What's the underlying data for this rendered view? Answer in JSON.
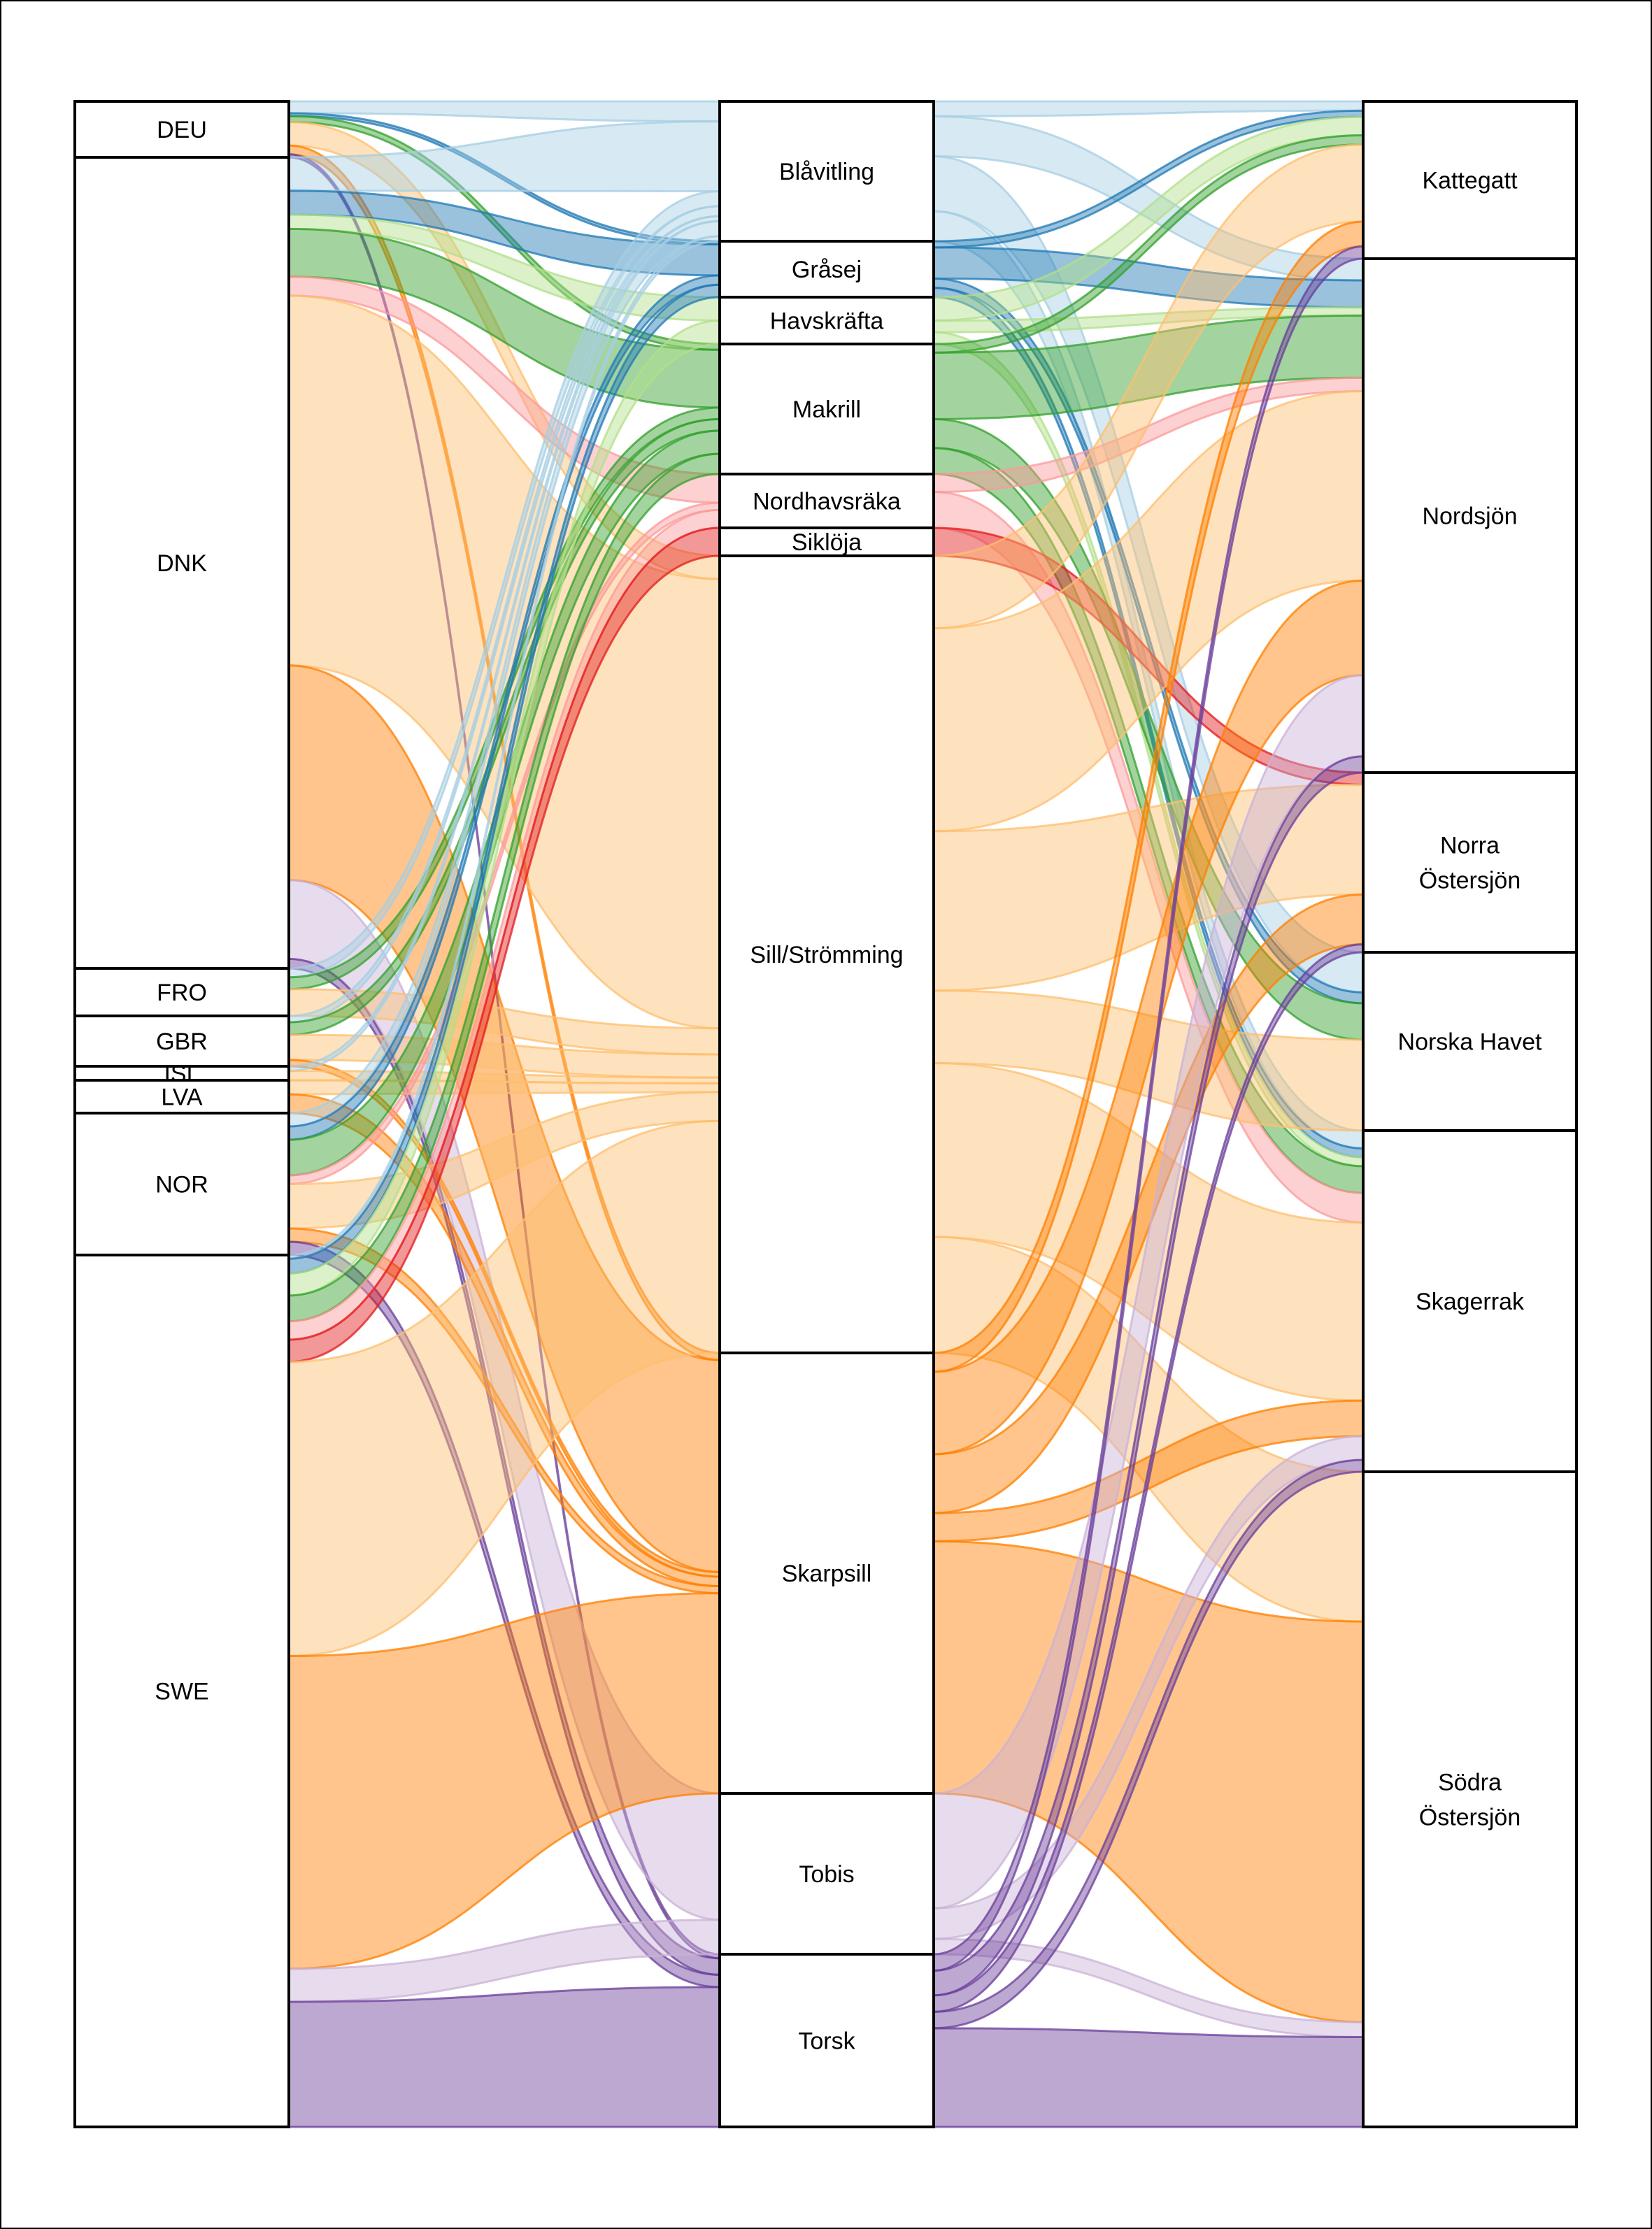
{
  "countries": [
    {
      "id": "DEU",
      "label": "DEU"
    },
    {
      "id": "DNK",
      "label": "DNK"
    },
    {
      "id": "FRO",
      "label": "FRO"
    },
    {
      "id": "GBR",
      "label": "GBR"
    },
    {
      "id": "ISL",
      "label": "ISL"
    },
    {
      "id": "LVA",
      "label": "LVA"
    },
    {
      "id": "NOR",
      "label": "NOR"
    },
    {
      "id": "SWE",
      "label": "SWE"
    }
  ],
  "species": [
    {
      "id": "blavitling",
      "label": "Blåvitling",
      "color": "#a6cee3"
    },
    {
      "id": "grasej",
      "label": "Gråsej",
      "color": "#1f78b4"
    },
    {
      "id": "havskrafta",
      "label": "Havskräfta",
      "color": "#b2df8a"
    },
    {
      "id": "makrill",
      "label": "Makrill",
      "color": "#33a02c"
    },
    {
      "id": "nordhavsraka",
      "label": "Nordhavsräka",
      "color": "#fb9a99"
    },
    {
      "id": "siklója",
      "label": "Siklöja",
      "color": "#e31a1c"
    },
    {
      "id": "sill",
      "label": "Sill/Strömming",
      "color": "#fdbf6f"
    },
    {
      "id": "skarpsill",
      "label": "Skarpsill",
      "color": "#ff7f00"
    },
    {
      "id": "tobis",
      "label": "Tobis",
      "color": "#cab2d6"
    },
    {
      "id": "torsk",
      "label": "Torsk",
      "color": "#6a3d9a"
    }
  ],
  "areas": [
    {
      "id": "kattegatt",
      "label": "Kattegatt"
    },
    {
      "id": "nordsjon",
      "label": "Nordsjön"
    },
    {
      "id": "norra",
      "label": "Norra\nÖstersjön"
    },
    {
      "id": "norska",
      "label": "Norska Havet"
    },
    {
      "id": "skagerrak",
      "label": "Skagerrak"
    },
    {
      "id": "sodra",
      "label": "Södra\nÖstersjön"
    }
  ],
  "flows_country_species": [
    [
      "DEU",
      "blavitling",
      4
    ],
    [
      "DEU",
      "grasej",
      1
    ],
    [
      "DEU",
      "makrill",
      2
    ],
    [
      "DEU",
      "sill",
      8
    ],
    [
      "DEU",
      "skarpsill",
      3
    ],
    [
      "DEU",
      "torsk",
      1
    ],
    [
      "DNK",
      "blavitling",
      14
    ],
    [
      "DNK",
      "grasej",
      10
    ],
    [
      "DNK",
      "havskrafta",
      6
    ],
    [
      "DNK",
      "makrill",
      20
    ],
    [
      "DNK",
      "nordhavsraka",
      8
    ],
    [
      "DNK",
      "sill",
      155
    ],
    [
      "DNK",
      "skarpsill",
      90
    ],
    [
      "DNK",
      "tobis",
      33
    ],
    [
      "DNK",
      "torsk",
      4
    ],
    [
      "FRO",
      "blavitling",
      3
    ],
    [
      "FRO",
      "makrill",
      4
    ],
    [
      "FRO",
      "sill",
      9
    ],
    [
      "GBR",
      "blavitling",
      2
    ],
    [
      "GBR",
      "makrill",
      4
    ],
    [
      "GBR",
      "sill",
      8
    ],
    [
      "GBR",
      "skarpsill",
      2
    ],
    [
      "ISL",
      "sill",
      2
    ],
    [
      "ISL",
      "blavitling",
      1
    ],
    [
      "LVA",
      "sill",
      3
    ],
    [
      "LVA",
      "skarpsill",
      4
    ],
    [
      "NOR",
      "blavitling",
      3
    ],
    [
      "NOR",
      "grasej",
      3
    ],
    [
      "NOR",
      "makrill",
      8
    ],
    [
      "NOR",
      "nordhavsraka",
      2
    ],
    [
      "NOR",
      "sill",
      10
    ],
    [
      "NOR",
      "skarpsill",
      3
    ],
    [
      "NOR",
      "torsk",
      3
    ],
    [
      "SWE",
      "blavitling",
      1
    ],
    [
      "SWE",
      "grasej",
      4
    ],
    [
      "SWE",
      "havskrafta",
      6
    ],
    [
      "SWE",
      "makrill",
      7
    ],
    [
      "SWE",
      "nordhavsraka",
      5
    ],
    [
      "SWE",
      "siklója",
      6
    ],
    [
      "SWE",
      "sill",
      80
    ],
    [
      "SWE",
      "skarpsill",
      85
    ],
    [
      "SWE",
      "tobis",
      9
    ],
    [
      "SWE",
      "torsk",
      34
    ]
  ],
  "flows_species_area": [
    [
      "blavitling",
      "kattegatt",
      3
    ],
    [
      "blavitling",
      "nordsjon",
      8
    ],
    [
      "blavitling",
      "norska",
      11
    ],
    [
      "blavitling",
      "skagerrak",
      6
    ],
    [
      "grasej",
      "kattegatt",
      2
    ],
    [
      "grasej",
      "nordsjon",
      10
    ],
    [
      "grasej",
      "norska",
      3
    ],
    [
      "grasej",
      "skagerrak",
      3
    ],
    [
      "havskrafta",
      "kattegatt",
      6
    ],
    [
      "havskrafta",
      "nordsjon",
      3
    ],
    [
      "havskrafta",
      "skagerrak",
      3
    ],
    [
      "makrill",
      "kattegatt",
      3
    ],
    [
      "makrill",
      "nordsjon",
      23
    ],
    [
      "makrill",
      "norska",
      10
    ],
    [
      "makrill",
      "skagerrak",
      9
    ],
    [
      "nordhavsraka",
      "nordsjon",
      5
    ],
    [
      "nordhavsraka",
      "skagerrak",
      10
    ],
    [
      "siklója",
      "norra",
      6
    ],
    [
      "sill",
      "kattegatt",
      25
    ],
    [
      "sill",
      "nordsjon",
      70
    ],
    [
      "sill",
      "norra",
      55
    ],
    [
      "sill",
      "norska",
      25
    ],
    [
      "sill",
      "skagerrak",
      60
    ],
    [
      "sill",
      "sodra",
      40
    ],
    [
      "skarpsill",
      "kattegatt",
      8
    ],
    [
      "skarpsill",
      "nordsjon",
      35
    ],
    [
      "skarpsill",
      "norra",
      25
    ],
    [
      "skarpsill",
      "skagerrak",
      12
    ],
    [
      "skarpsill",
      "sodra",
      107
    ],
    [
      "tobis",
      "nordsjon",
      30
    ],
    [
      "tobis",
      "skagerrak",
      8
    ],
    [
      "tobis",
      "sodra",
      4
    ],
    [
      "torsk",
      "kattegatt",
      4
    ],
    [
      "torsk",
      "nordsjon",
      6
    ],
    [
      "torsk",
      "norra",
      4
    ],
    [
      "torsk",
      "skagerrak",
      4
    ],
    [
      "torsk",
      "sodra",
      24
    ]
  ]
}
